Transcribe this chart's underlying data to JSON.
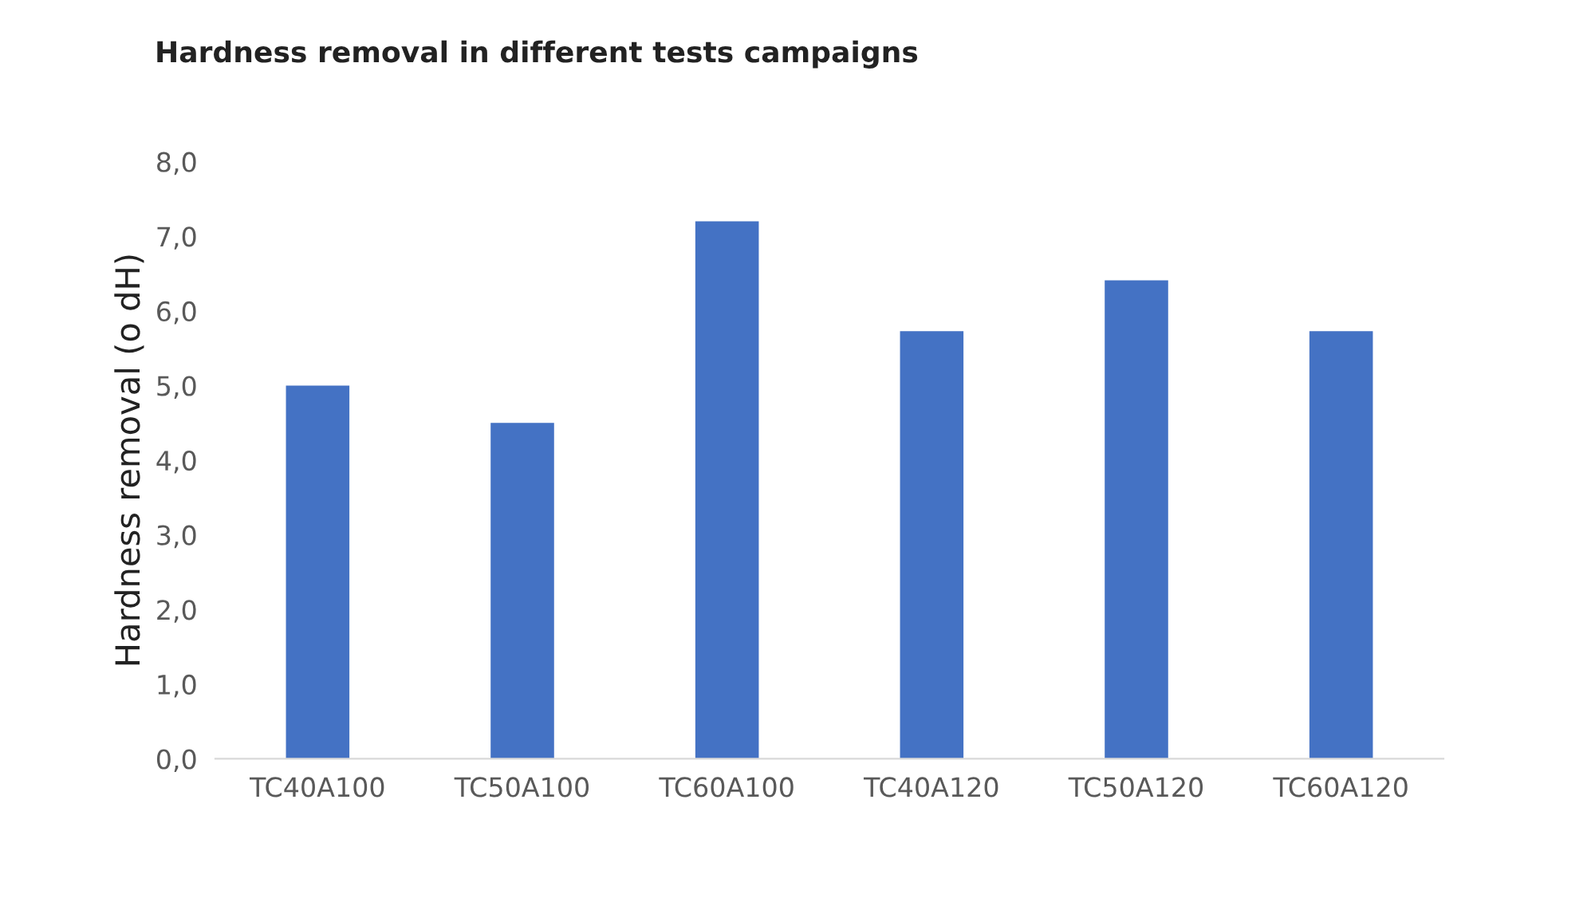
{
  "chart_data": {
    "type": "bar",
    "title": "Hardness removal in different tests campaigns",
    "ylabel": "Hardness removal (o dH)",
    "categories": [
      "TC40A100",
      "TC50A100",
      "TC60A100",
      "TC40A120",
      "TC50A120",
      "TC60A120"
    ],
    "values": [
      5.0,
      4.5,
      7.2,
      5.73,
      6.41,
      5.73
    ],
    "color": "#4472c4",
    "ylim": [
      0,
      8
    ],
    "yticks": [
      {
        "value": 0,
        "label": "0,0"
      },
      {
        "value": 1,
        "label": "1,0"
      },
      {
        "value": 2,
        "label": "2,0"
      },
      {
        "value": 3,
        "label": "3,0"
      },
      {
        "value": 4,
        "label": "4,0"
      },
      {
        "value": 5,
        "label": "5,0"
      },
      {
        "value": 6,
        "label": "6,0"
      },
      {
        "value": 7,
        "label": "7,0"
      },
      {
        "value": 8,
        "label": "8,0"
      }
    ],
    "grid": false
  }
}
